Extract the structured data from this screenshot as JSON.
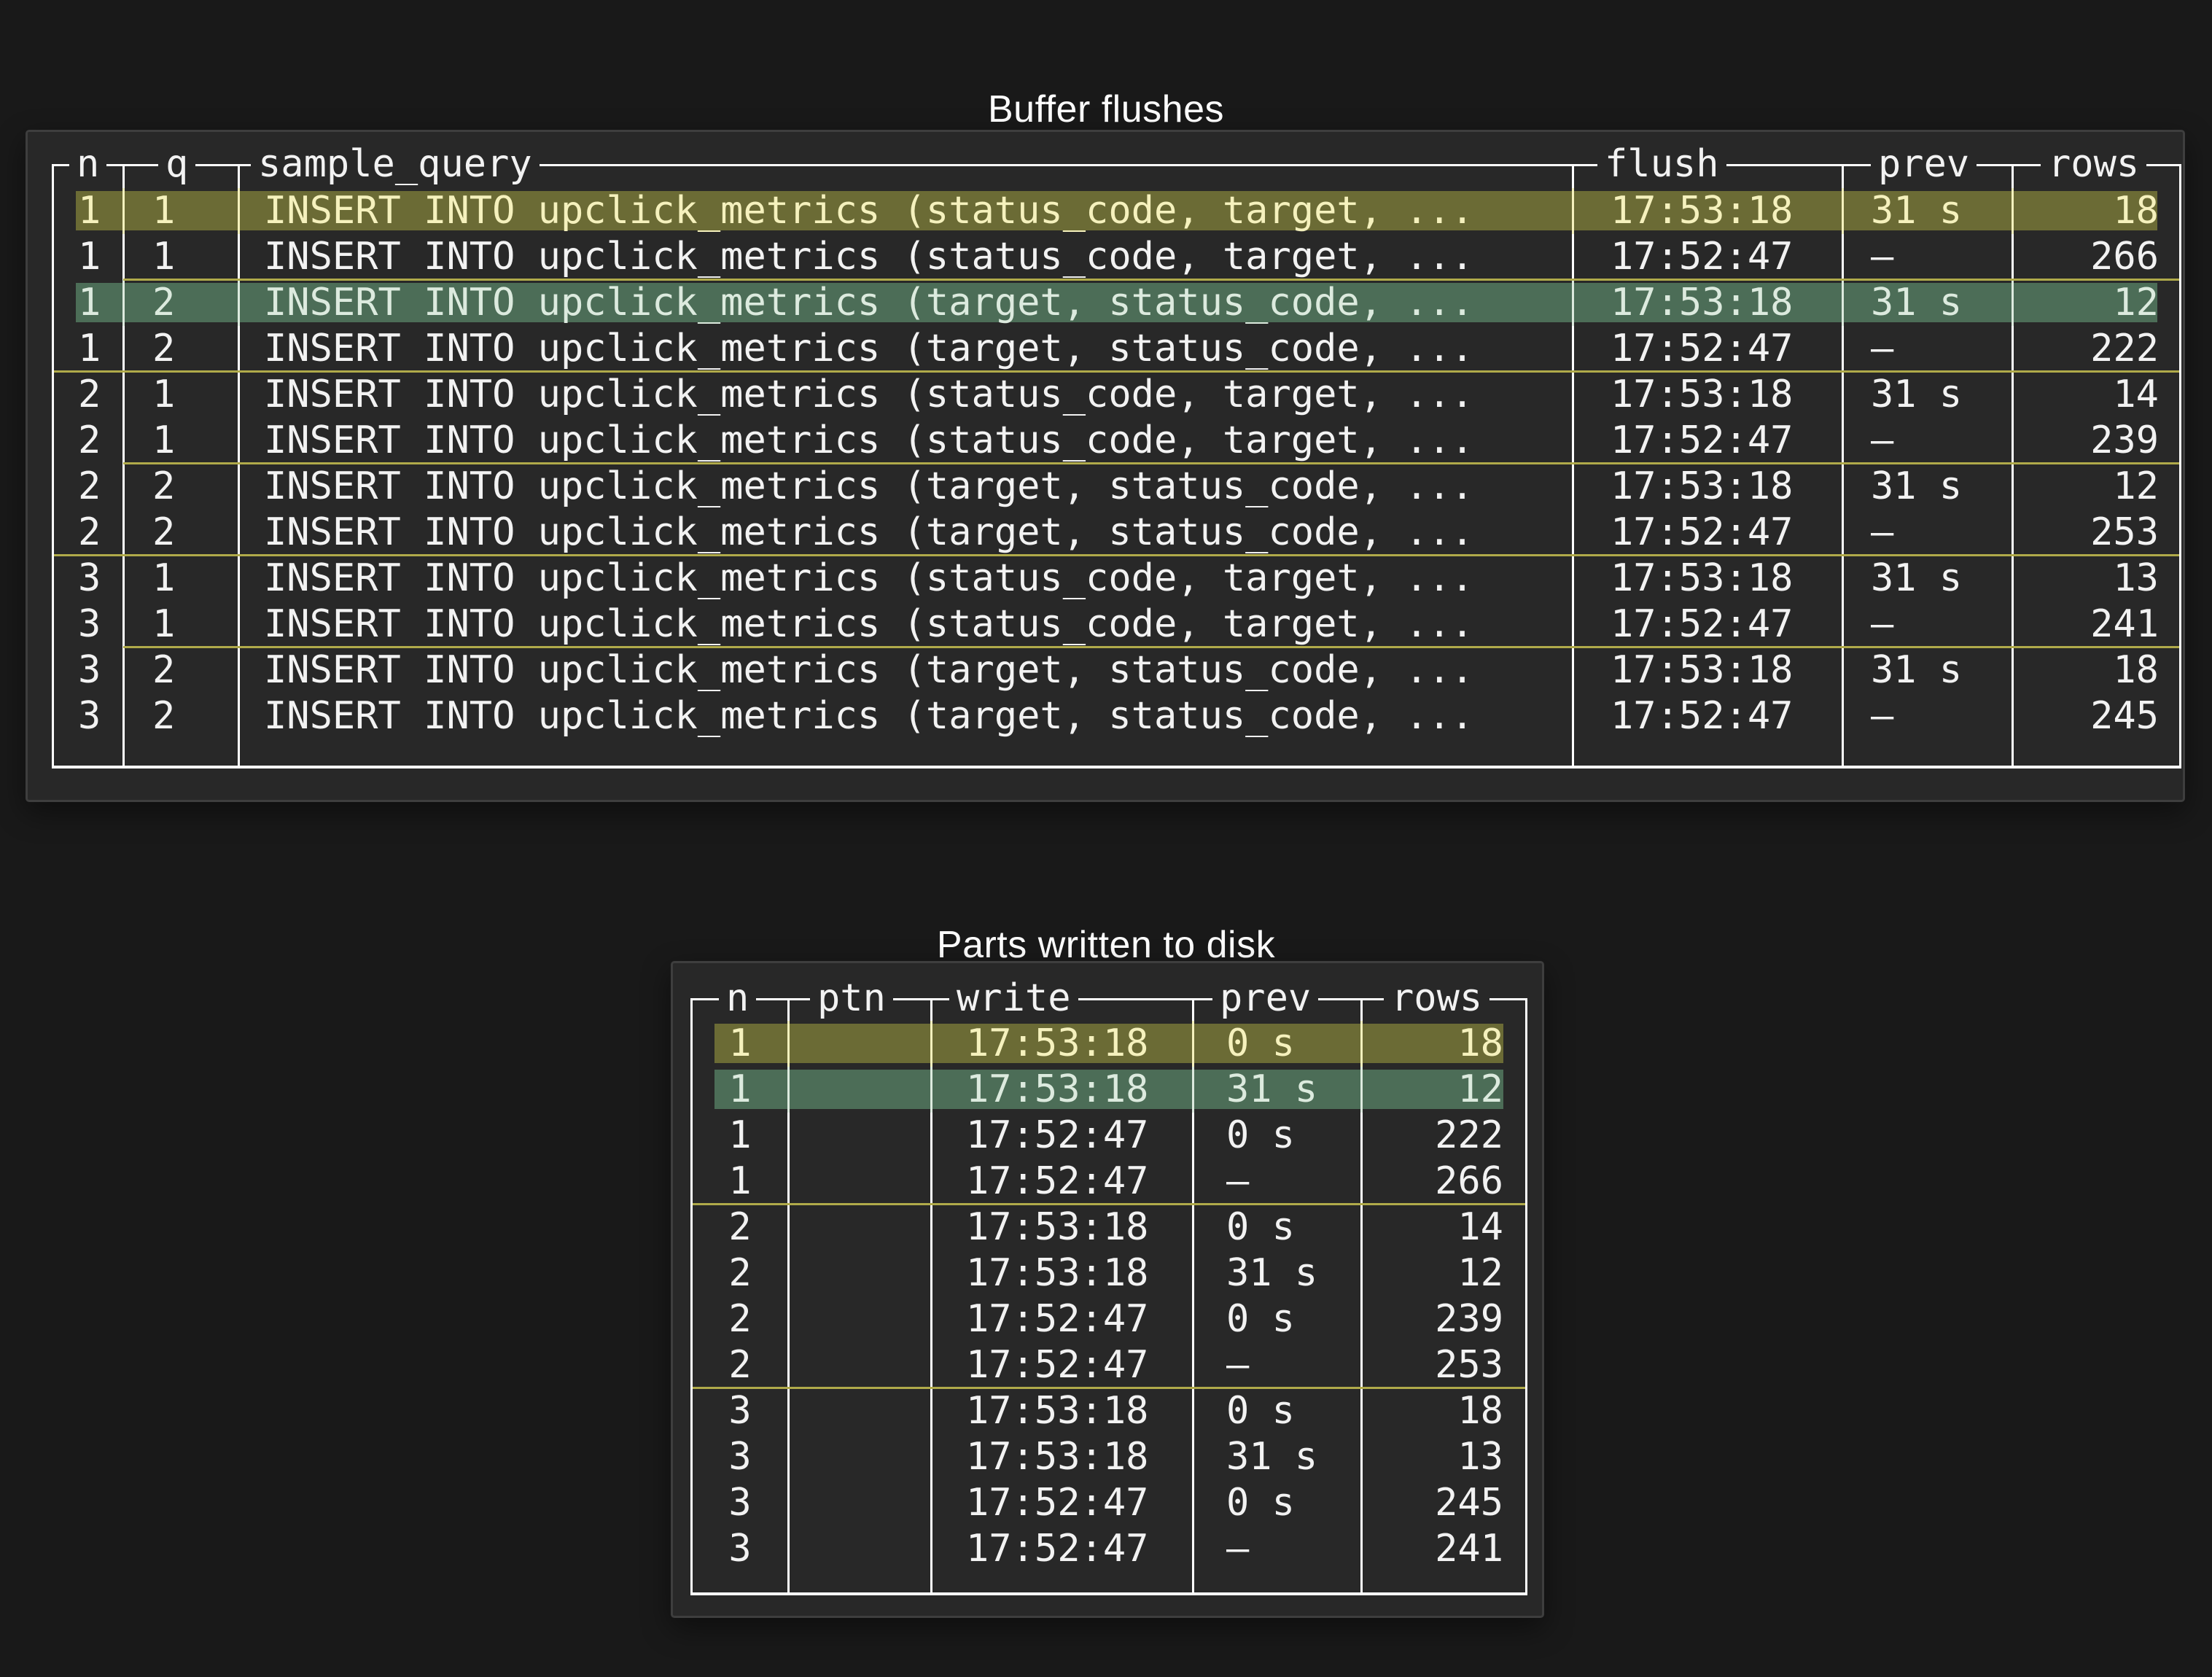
{
  "colors": {
    "page_bg": "#191919",
    "panel_bg": "#282828",
    "panel_border": "#3e3e3e",
    "table_border": "#ffffff",
    "text": "#f2f2f2",
    "highlight_olive_bg": "#6b6b35",
    "highlight_olive_fg": "#f5f1bd",
    "highlight_green_bg": "#4c6d57",
    "highlight_green_fg": "#dceade",
    "group_separator": "#b0aa4a"
  },
  "tables": [
    {
      "title": "Buffer flushes",
      "columns": [
        "n",
        "q",
        "sample_query",
        "flush",
        "prev",
        "rows"
      ],
      "rows": [
        {
          "cells": [
            "1",
            "1",
            "INSERT INTO upclick_metrics (status_code, target, ...",
            "17:53:18",
            "31 s",
            "18"
          ],
          "highlight": "olive",
          "separator_above": "none"
        },
        {
          "cells": [
            "1",
            "1",
            "INSERT INTO upclick_metrics (status_code, target, ...",
            "17:52:47",
            "–",
            "266"
          ],
          "highlight": "none",
          "separator_above": "none"
        },
        {
          "cells": [
            "1",
            "2",
            "INSERT INTO upclick_metrics (target, status_code, ...",
            "17:53:18",
            "31 s",
            "12"
          ],
          "highlight": "green",
          "separator_above": "partial"
        },
        {
          "cells": [
            "1",
            "2",
            "INSERT INTO upclick_metrics (target, status_code, ...",
            "17:52:47",
            "–",
            "222"
          ],
          "highlight": "none",
          "separator_above": "none"
        },
        {
          "cells": [
            "2",
            "1",
            "INSERT INTO upclick_metrics (status_code, target, ...",
            "17:53:18",
            "31 s",
            "14"
          ],
          "highlight": "none",
          "separator_above": "full"
        },
        {
          "cells": [
            "2",
            "1",
            "INSERT INTO upclick_metrics (status_code, target, ...",
            "17:52:47",
            "–",
            "239"
          ],
          "highlight": "none",
          "separator_above": "none"
        },
        {
          "cells": [
            "2",
            "2",
            "INSERT INTO upclick_metrics (target, status_code, ...",
            "17:53:18",
            "31 s",
            "12"
          ],
          "highlight": "none",
          "separator_above": "partial"
        },
        {
          "cells": [
            "2",
            "2",
            "INSERT INTO upclick_metrics (target, status_code, ...",
            "17:52:47",
            "–",
            "253"
          ],
          "highlight": "none",
          "separator_above": "none"
        },
        {
          "cells": [
            "3",
            "1",
            "INSERT INTO upclick_metrics (status_code, target, ...",
            "17:53:18",
            "31 s",
            "13"
          ],
          "highlight": "none",
          "separator_above": "full"
        },
        {
          "cells": [
            "3",
            "1",
            "INSERT INTO upclick_metrics (status_code, target, ...",
            "17:52:47",
            "–",
            "241"
          ],
          "highlight": "none",
          "separator_above": "none"
        },
        {
          "cells": [
            "3",
            "2",
            "INSERT INTO upclick_metrics (target, status_code, ...",
            "17:53:18",
            "31 s",
            "18"
          ],
          "highlight": "none",
          "separator_above": "partial"
        },
        {
          "cells": [
            "3",
            "2",
            "INSERT INTO upclick_metrics (target, status_code, ...",
            "17:52:47",
            "–",
            "245"
          ],
          "highlight": "none",
          "separator_above": "none"
        }
      ]
    },
    {
      "title": "Parts written to disk",
      "columns": [
        "n",
        "ptn",
        "write",
        "prev",
        "rows"
      ],
      "rows": [
        {
          "cells": [
            "1",
            "",
            "17:53:18",
            "0 s",
            "18"
          ],
          "highlight": "olive",
          "separator_above": "none"
        },
        {
          "cells": [
            "1",
            "",
            "17:53:18",
            "31 s",
            "12"
          ],
          "highlight": "green",
          "separator_above": "none"
        },
        {
          "cells": [
            "1",
            "",
            "17:52:47",
            "0 s",
            "222"
          ],
          "highlight": "none",
          "separator_above": "none"
        },
        {
          "cells": [
            "1",
            "",
            "17:52:47",
            "–",
            "266"
          ],
          "highlight": "none",
          "separator_above": "none"
        },
        {
          "cells": [
            "2",
            "",
            "17:53:18",
            "0 s",
            "14"
          ],
          "highlight": "none",
          "separator_above": "full"
        },
        {
          "cells": [
            "2",
            "",
            "17:53:18",
            "31 s",
            "12"
          ],
          "highlight": "none",
          "separator_above": "none"
        },
        {
          "cells": [
            "2",
            "",
            "17:52:47",
            "0 s",
            "239"
          ],
          "highlight": "none",
          "separator_above": "none"
        },
        {
          "cells": [
            "2",
            "",
            "17:52:47",
            "–",
            "253"
          ],
          "highlight": "none",
          "separator_above": "none"
        },
        {
          "cells": [
            "3",
            "",
            "17:53:18",
            "0 s",
            "18"
          ],
          "highlight": "none",
          "separator_above": "full"
        },
        {
          "cells": [
            "3",
            "",
            "17:53:18",
            "31 s",
            "13"
          ],
          "highlight": "none",
          "separator_above": "none"
        },
        {
          "cells": [
            "3",
            "",
            "17:52:47",
            "0 s",
            "245"
          ],
          "highlight": "none",
          "separator_above": "none"
        },
        {
          "cells": [
            "3",
            "",
            "17:52:47",
            "–",
            "241"
          ],
          "highlight": "none",
          "separator_above": "none"
        }
      ]
    }
  ]
}
